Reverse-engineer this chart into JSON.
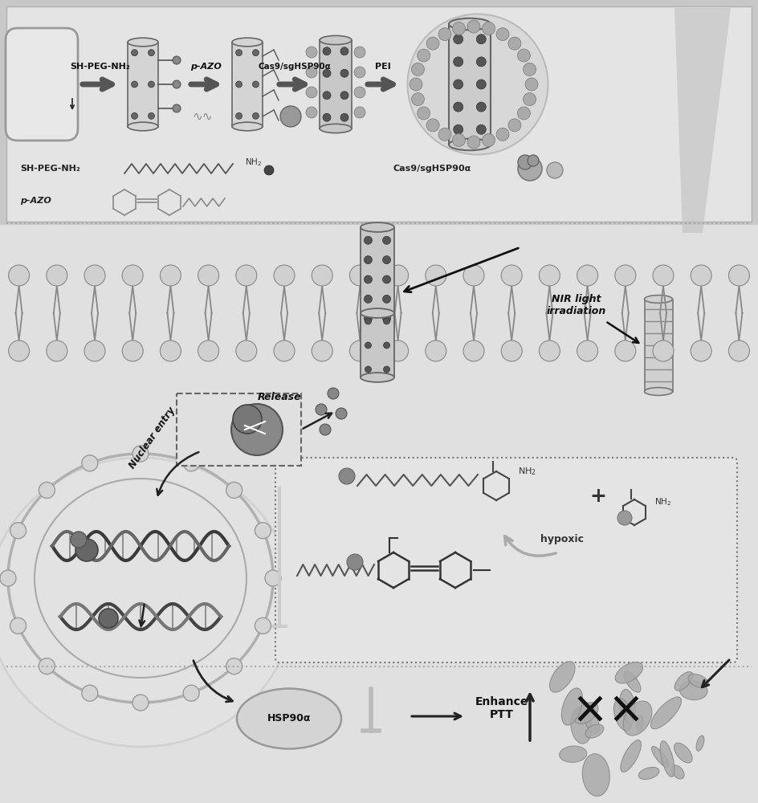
{
  "bg": "#c8c8c8",
  "top_bg": "#e2e2e2",
  "cell_bg": "#e8e8e8",
  "bottom_bg": "#dcdcdc",
  "labels": {
    "sh_peg_nh2_top": "SH-PEG-NH₂",
    "p_azo_top": "p-AZO",
    "cas9_top": "Cas9/sgHSP90α",
    "pei_top": "PEI",
    "sh_peg_nh2_bot": "SH-PEG-NH₂",
    "p_azo_bot": "p-AZO",
    "cas9_bot": "Cas9/sgHSP90α",
    "release": "Release",
    "nir": "NIR light\nirradiation",
    "nuclear_entry": "Nuclear entry",
    "hypoxic": "hypoxic",
    "hsp90a": "HSP90α",
    "enhance_ptt": "Enhance\nPTT"
  }
}
